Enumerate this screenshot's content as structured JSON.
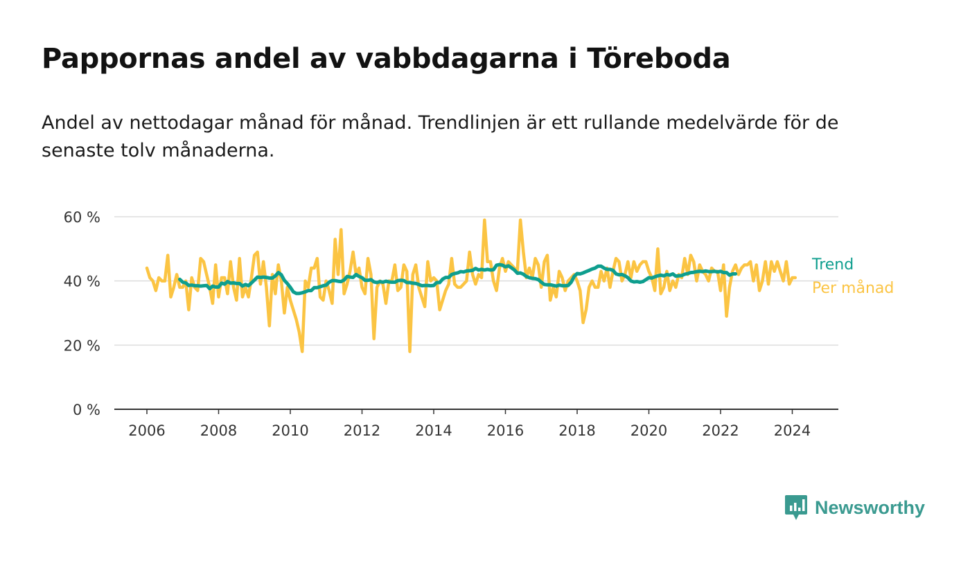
{
  "header": {
    "title": "Pappornas andel av vabbdagarna i Töreboda",
    "subtitle": "Andel av nettodagar månad för månad. Trendlinjen är ett rullande medelvärde för de senaste tolv månaderna."
  },
  "brand": {
    "name": "Newsworthy",
    "icon": "newsworthy-logo-icon",
    "color": "#3a9a90"
  },
  "colors": {
    "trend": "#0e9e8e",
    "monthly": "#fbc443",
    "grid": "#dddddd",
    "axis": "#333333"
  },
  "chart_data": {
    "type": "line",
    "xlim": [
      2006,
      2024.9
    ],
    "ylim": [
      0,
      60
    ],
    "x_ticks": [
      2006,
      2008,
      2010,
      2012,
      2014,
      2016,
      2018,
      2020,
      2022,
      2024
    ],
    "y_ticks": [
      {
        "value": 0,
        "label": "0 %"
      },
      {
        "value": 20,
        "label": "20 %"
      },
      {
        "value": 40,
        "label": "40 %"
      },
      {
        "value": 60,
        "label": "60 %"
      }
    ],
    "grid": true,
    "legend_position": "right, at series end",
    "series": [
      {
        "name": "Per månad",
        "x_start": 2006.0,
        "step": 0.0833333,
        "values": [
          44,
          41,
          40,
          37,
          41,
          40,
          40,
          48,
          35,
          38,
          42,
          38,
          38,
          40,
          31,
          41,
          38,
          37,
          47,
          46,
          42,
          38,
          33,
          45,
          35,
          41,
          41,
          36,
          46,
          38,
          34,
          47,
          35,
          38,
          35,
          41,
          48,
          49,
          39,
          46,
          38,
          26,
          42,
          36,
          45,
          40,
          30,
          38,
          34,
          31,
          28,
          24,
          18,
          40,
          38,
          44,
          44,
          47,
          35,
          34,
          40,
          37,
          33,
          53,
          42,
          56,
          36,
          39,
          43,
          49,
          42,
          44,
          38,
          36,
          47,
          42,
          22,
          38,
          40,
          39,
          33,
          40,
          40,
          45,
          37,
          38,
          45,
          43,
          18,
          42,
          45,
          38,
          35,
          32,
          46,
          40,
          41,
          40,
          31,
          34,
          37,
          39,
          47,
          39,
          38,
          38,
          39,
          40,
          49,
          42,
          39,
          42,
          41,
          59,
          46,
          46,
          40,
          37,
          44,
          47,
          43,
          46,
          45,
          44,
          43,
          59,
          49,
          41,
          44,
          41,
          47,
          45,
          38,
          46,
          48,
          34,
          38,
          35,
          43,
          41,
          37,
          40,
          41,
          42,
          40,
          37,
          27,
          31,
          38,
          40,
          38,
          38,
          43,
          40,
          44,
          38,
          43,
          47,
          46,
          40,
          42,
          46,
          41,
          46,
          43,
          45,
          46,
          46,
          43,
          41,
          37,
          50,
          36,
          38,
          43,
          37,
          40,
          38,
          42,
          41,
          47,
          42,
          48,
          46,
          40,
          45,
          43,
          42,
          40,
          44,
          43,
          43,
          37,
          45,
          29,
          38,
          43,
          45,
          42,
          44,
          45,
          45,
          46,
          40,
          45,
          37,
          40,
          46,
          39,
          46,
          43,
          46,
          43,
          40,
          46,
          39,
          41,
          41
        ]
      },
      {
        "name": "Trend",
        "x_start": 2006.917,
        "step": 0.0833333,
        "values": [
          40.5,
          39.6,
          39.4,
          38.6,
          38.7,
          38.5,
          38.5,
          38.4,
          38.5,
          38.6,
          37.6,
          38.4,
          38.1,
          38.1,
          39.3,
          39.0,
          39.8,
          39.3,
          39.4,
          39.2,
          39.2,
          38.4,
          38.9,
          38.5,
          39.4,
          40.3,
          41.2,
          41.1,
          41.2,
          41.1,
          40.9,
          40.9,
          41.6,
          42.6,
          41.9,
          40.2,
          39.2,
          38.0,
          36.6,
          36.1,
          36.1,
          36.3,
          36.6,
          37.0,
          37.0,
          37.9,
          37.9,
          38.2,
          38.5,
          38.7,
          39.6,
          40.1,
          40.1,
          39.9,
          39.8,
          40.3,
          41.4,
          41.2,
          41.1,
          42.0,
          41.4,
          41.0,
          40.2,
          40.2,
          40.4,
          39.7,
          39.5,
          39.8,
          39.6,
          39.9,
          39.7,
          39.6,
          39.6,
          40.1,
          40.2,
          40.1,
          39.5,
          39.5,
          39.3,
          39.2,
          38.9,
          38.5,
          38.6,
          38.6,
          38.5,
          38.6,
          39.5,
          39.5,
          40.6,
          41.1,
          41.1,
          42.0,
          42.3,
          42.5,
          42.9,
          42.8,
          43.1,
          43.2,
          43.3,
          43.9,
          43.4,
          43.6,
          43.4,
          43.6,
          43.4,
          43.5,
          44.9,
          45.1,
          44.9,
          44.4,
          44.7,
          44.1,
          43.4,
          42.4,
          42.5,
          42.1,
          41.4,
          41.0,
          40.8,
          40.7,
          40.4,
          39.6,
          38.9,
          38.8,
          38.8,
          38.6,
          38.4,
          38.7,
          38.5,
          38.5,
          38.6,
          39.6,
          41.4,
          42.3,
          42.2,
          42.5,
          42.9,
          43.3,
          43.7,
          44.0,
          44.6,
          44.6,
          44.0,
          43.6,
          43.6,
          43.3,
          42.2,
          41.9,
          42.0,
          41.6,
          41.0,
          40.0,
          39.7,
          39.8,
          39.6,
          39.8,
          40.4,
          41.0,
          40.9,
          41.3,
          41.6,
          41.8,
          41.6,
          42.0,
          41.8,
          42.2,
          41.5,
          41.6,
          41.7,
          42.1,
          42.3,
          42.6,
          42.7,
          42.9,
          43.0,
          42.9,
          43.1,
          42.9,
          42.9,
          43.0,
          42.8,
          43.0,
          42.6,
          42.6,
          41.8,
          42.2,
          42.2
        ]
      }
    ]
  }
}
